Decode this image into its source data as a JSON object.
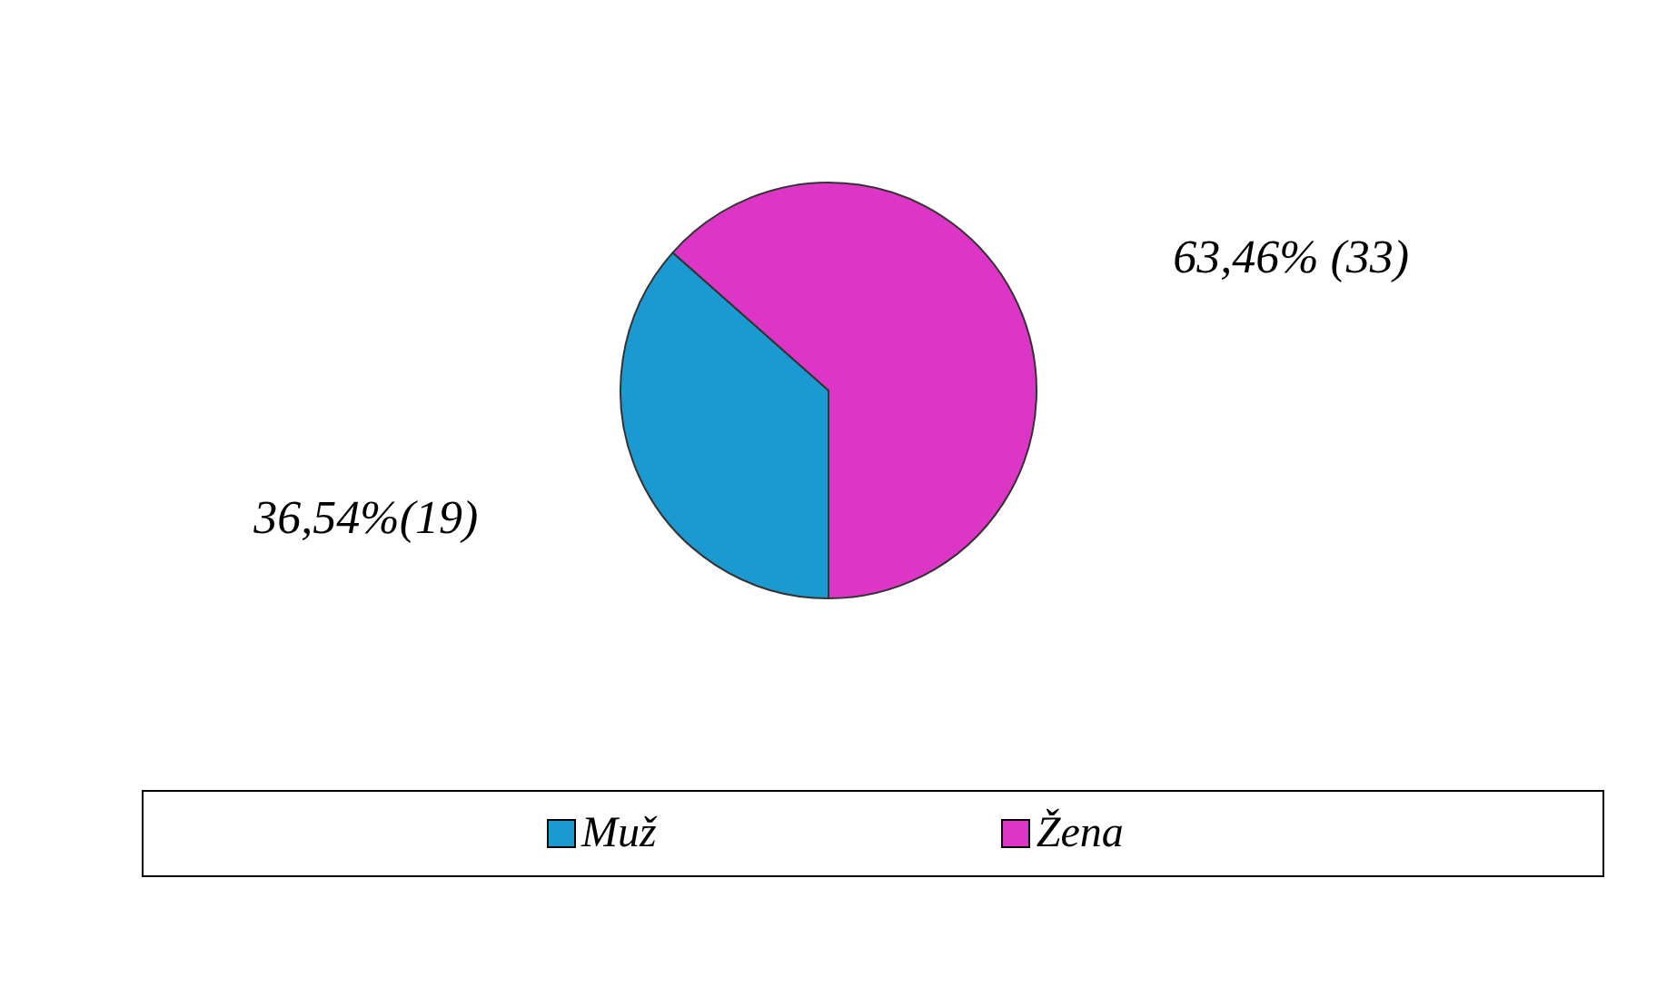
{
  "chart_data": {
    "type": "pie",
    "categories": [
      "Muž",
      "Žena"
    ],
    "values": [
      19,
      33
    ],
    "colors": [
      "#1b9ad2",
      "#dd35c6"
    ],
    "value_labels": [
      "36,54%(19)",
      "63,46% (33)"
    ],
    "legend": "bottom"
  }
}
